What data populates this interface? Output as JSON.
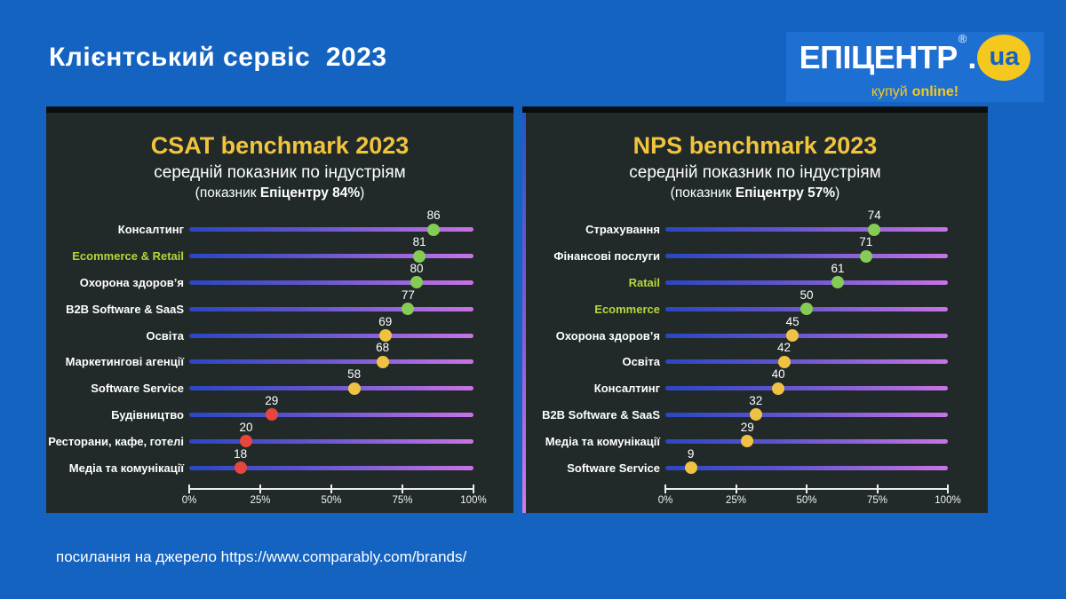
{
  "header": {
    "title": "Клієнтський сервіс  2023"
  },
  "logo": {
    "brand": "ЕПІЦЕНТР",
    "reg": "®",
    "dot": ".",
    "tld": "ua",
    "tagline_regular": "купуй",
    "tagline_bold": "online!"
  },
  "source": {
    "text": "посилання на джерело https://www.comparably.com/brands/"
  },
  "theme": {
    "background": "#1463C0",
    "logo_box": "#1E6FD2",
    "logo_yellow": "#F5C81E",
    "panel": "#212A29",
    "panel_top_border": "#0B0C0C",
    "accent_yellow": "#F2C43D",
    "lime_label": "#B8D53A",
    "track_gradient": [
      "#2A47C2",
      "#8E63D9",
      "#C973E6"
    ],
    "dot_green": "#84CC55",
    "dot_yellow": "#F0C244",
    "dot_red": "#E8453F",
    "axis": "#EDEDED",
    "text": "#FFFFFF"
  },
  "chart_data": [
    {
      "type": "bar",
      "variant": "horizontal-lollipop",
      "title": "CSAT benchmark 2023",
      "subtitle": "середній показник по індустріям",
      "note_prefix": "(показник ",
      "note_bold": "Епіцентру 84%",
      "note_suffix": ")",
      "xlim": [
        0,
        100
      ],
      "axis_ticks": [
        "0%",
        "25%",
        "50%",
        "75%",
        "100%"
      ],
      "grid": false,
      "legend": "none",
      "categories": [
        "Консалтинг",
        "Ecommerce & Retail",
        "Охорона здоров’я",
        "B2B Software & SaaS",
        "Освіта",
        "Маркетингові агенції",
        "Software Service",
        "Будівництво",
        "Ресторани, кафе, готелі",
        "Медіа та комунікації"
      ],
      "values": [
        86,
        81,
        80,
        77,
        69,
        68,
        58,
        29,
        20,
        18
      ],
      "dot_colors": [
        "green",
        "green",
        "green",
        "green",
        "yellow",
        "yellow",
        "yellow",
        "red",
        "red",
        "red"
      ],
      "highlighted_labels": [
        "Ecommerce & Retail"
      ]
    },
    {
      "type": "bar",
      "variant": "horizontal-lollipop",
      "title": "NPS benchmark 2023",
      "subtitle": "середній показник по індустріям",
      "note_prefix": "(показник ",
      "note_bold": "Епіцентру 57%",
      "note_suffix": ")",
      "xlim": [
        0,
        100
      ],
      "axis_ticks": [
        "0%",
        "25%",
        "50%",
        "75%",
        "100%"
      ],
      "grid": false,
      "legend": "none",
      "categories": [
        "Страхування",
        "Фінансові послуги",
        "Ratail",
        "Ecommerce",
        "Охорона здоров’я",
        "Освіта",
        "Консалтинг",
        "B2B Software & SaaS",
        "Медіа та комунікації",
        "Software Service"
      ],
      "values": [
        74,
        71,
        61,
        50,
        45,
        42,
        40,
        32,
        29,
        9
      ],
      "dot_colors": [
        "green",
        "green",
        "green",
        "green",
        "yellow",
        "yellow",
        "yellow",
        "yellow",
        "yellow",
        "yellow"
      ],
      "highlighted_labels": [
        "Ratail",
        "Ecommerce"
      ]
    }
  ]
}
